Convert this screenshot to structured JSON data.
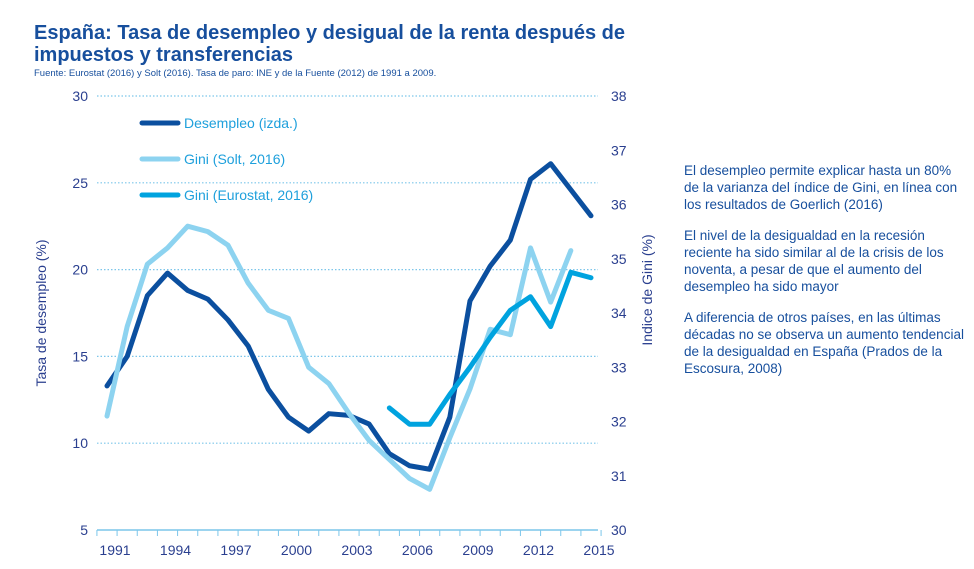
{
  "title": "España: Tasa de desempleo y desigual de la renta después de impuestos y transferencias",
  "source": "Fuente: Eurostat (2016) y Solt (2016). Tasa de paro: INE y de la Fuente (2012) de 1991 a 2009.",
  "notes": [
    "El desempleo permite explicar hasta un 80% de la varianza del índice de Gini, en línea con los resultados de Goerlich (2016)",
    "El nivel de la desigualdad en la recesión reciente ha sido similar al de la crisis de los noventa, a pesar de que el aumento del desempleo ha sido mayor",
    "A diferencia de otros países, en las últimas décadas no se observa un aumento tendencial de la desigualdad en España (Prados de la Escosura, 2008)"
  ],
  "chart_data": {
    "type": "line",
    "ylabel": "Tasa de desempleo (%)",
    "y2label": "Indice de Gini (%)",
    "ylim": [
      5,
      30
    ],
    "y2lim": [
      30,
      38
    ],
    "yticks": [
      "5",
      "10",
      "15",
      "20",
      "25",
      "30"
    ],
    "y2ticks": [
      "30",
      "31",
      "32",
      "33",
      "34",
      "35",
      "36",
      "37",
      "38"
    ],
    "xticks": [
      "1991",
      "1994",
      "1997",
      "2000",
      "2003",
      "2006",
      "2009",
      "2012",
      "2015"
    ],
    "xlim": [
      1991,
      2015
    ],
    "grid": true,
    "legend": "top-left",
    "series": [
      {
        "name": "Desempleo (izda.)",
        "axis": "left",
        "color": "#0b4f9f",
        "x": [
          1991,
          1992,
          1993,
          1994,
          1995,
          1996,
          1997,
          1998,
          1999,
          2000,
          2001,
          2002,
          2003,
          2004,
          2005,
          2006,
          2007,
          2008,
          2009,
          2010,
          2011,
          2012,
          2013,
          2014,
          2015
        ],
        "values": [
          13.3,
          15.0,
          18.5,
          19.8,
          18.8,
          18.3,
          17.1,
          15.6,
          13.1,
          11.5,
          10.7,
          11.7,
          11.6,
          11.1,
          9.4,
          8.7,
          8.5,
          11.5,
          18.2,
          20.2,
          21.7,
          25.2,
          26.1,
          24.6,
          23.1
        ]
      },
      {
        "name": "Gini (Solt, 2016)",
        "axis": "right",
        "color": "#8dd3f0",
        "x": [
          1991,
          1992,
          1993,
          1994,
          1995,
          1996,
          1997,
          1998,
          1999,
          2000,
          2001,
          2002,
          2003,
          2004,
          2005,
          2006,
          2007,
          2008,
          2009,
          2010,
          2011,
          2012,
          2013,
          2014
        ],
        "values": [
          32.1,
          33.75,
          34.9,
          35.2,
          35.6,
          35.5,
          35.25,
          34.55,
          34.05,
          33.9,
          33.0,
          32.7,
          32.15,
          31.65,
          31.3,
          30.95,
          30.75,
          31.7,
          32.6,
          33.7,
          33.6,
          35.2,
          34.2,
          35.15
        ]
      },
      {
        "name": "Gini (Eurostat, 2016)",
        "axis": "right",
        "color": "#00a3df",
        "x": [
          2005,
          2006,
          2007,
          2008,
          2009,
          2010,
          2011,
          2012,
          2013,
          2014,
          2015
        ],
        "values": [
          32.25,
          31.95,
          31.95,
          32.5,
          33.0,
          33.55,
          34.05,
          34.3,
          33.75,
          34.75,
          34.65
        ]
      }
    ]
  }
}
